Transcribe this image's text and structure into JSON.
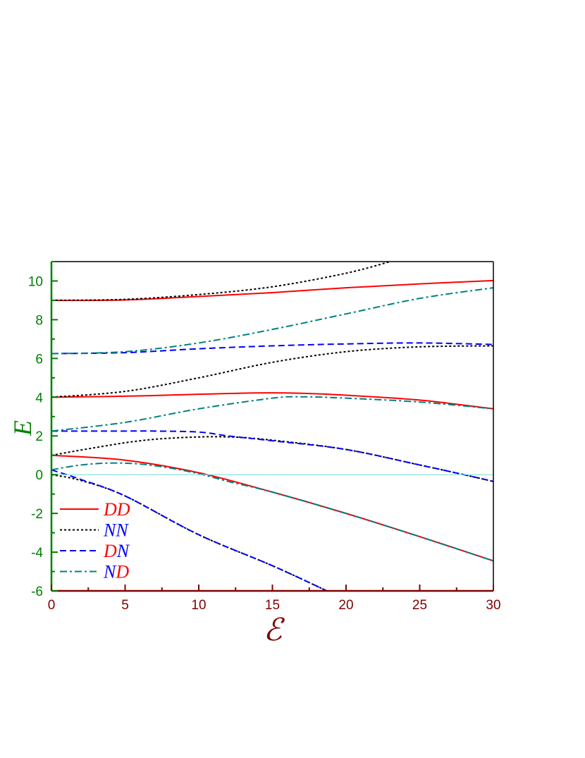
{
  "chart_data": {
    "type": "line",
    "title": "",
    "xlabel": "ℰ",
    "ylabel": "E",
    "xlim": [
      0,
      30
    ],
    "ylim": [
      -6,
      11
    ],
    "xticks": [
      0,
      5,
      10,
      15,
      20,
      25,
      30
    ],
    "yticks": [
      -6,
      -4,
      -2,
      0,
      2,
      4,
      6,
      8,
      10
    ],
    "grid": false,
    "legend_placement": "bottom-left",
    "colors": {
      "x_axis": "#800000",
      "y_axis": "#008000",
      "zero_line": "#7fe0e0"
    },
    "legend": [
      {
        "key": "DD",
        "parts": [
          {
            "t": "D",
            "c": "#ff0000"
          },
          {
            "t": "D",
            "c": "#ff0000"
          }
        ],
        "color": "#ff0000",
        "dash": "solid"
      },
      {
        "key": "NN",
        "parts": [
          {
            "t": "N",
            "c": "#0000ff"
          },
          {
            "t": "N",
            "c": "#0000ff"
          }
        ],
        "color": "#000000",
        "dash": "dot"
      },
      {
        "key": "DN",
        "parts": [
          {
            "t": "D",
            "c": "#ff0000"
          },
          {
            "t": "N",
            "c": "#0000ff"
          }
        ],
        "color": "#0000ff",
        "dash": "dash"
      },
      {
        "key": "ND",
        "parts": [
          {
            "t": "N",
            "c": "#0000ff"
          },
          {
            "t": "D",
            "c": "#ff0000"
          }
        ],
        "color": "#008080",
        "dash": "dashdot"
      }
    ],
    "series": [
      {
        "group": "DD",
        "x": [
          0,
          5,
          10,
          15,
          20,
          25,
          30
        ],
        "y": [
          1,
          0.75,
          0.1,
          -0.9,
          -2.0,
          -3.2,
          -4.45
        ]
      },
      {
        "group": "DD",
        "x": [
          0,
          5,
          10,
          14,
          17,
          20,
          25,
          30
        ],
        "y": [
          4,
          4.05,
          4.15,
          4.22,
          4.2,
          4.1,
          3.85,
          3.4
        ]
      },
      {
        "group": "DD",
        "x": [
          0,
          5,
          10,
          15,
          20,
          25,
          30
        ],
        "y": [
          9,
          9.02,
          9.2,
          9.4,
          9.65,
          9.85,
          10.02
        ]
      },
      {
        "group": "NN",
        "x": [
          0,
          2,
          5,
          10,
          15,
          18.7
        ],
        "y": [
          0,
          -0.3,
          -1.1,
          -3.1,
          -4.7,
          -6
        ]
      },
      {
        "group": "NN",
        "x": [
          0,
          3,
          6,
          9,
          12,
          15,
          20,
          25,
          28,
          30
        ],
        "y": [
          1,
          1.4,
          1.75,
          1.92,
          1.95,
          1.78,
          1.3,
          0.5,
          0,
          -0.35
        ]
      },
      {
        "group": "NN",
        "x": [
          0,
          5,
          10,
          15,
          20,
          25,
          30
        ],
        "y": [
          4,
          4.3,
          5.0,
          5.8,
          6.35,
          6.6,
          6.65
        ]
      },
      {
        "group": "NN",
        "x": [
          0,
          5,
          10,
          15,
          20,
          23
        ],
        "y": [
          9,
          9.05,
          9.3,
          9.7,
          10.4,
          11
        ]
      },
      {
        "group": "DN",
        "x": [
          0,
          2,
          5,
          10,
          15,
          18.7
        ],
        "y": [
          0.25,
          -0.25,
          -1.1,
          -3.1,
          -4.7,
          -6
        ]
      },
      {
        "group": "DN",
        "x": [
          0,
          4,
          7,
          10,
          12,
          15,
          20,
          25,
          28,
          30
        ],
        "y": [
          2.25,
          2.25,
          2.25,
          2.2,
          2.0,
          1.75,
          1.3,
          0.5,
          0,
          -0.35
        ]
      },
      {
        "group": "DN",
        "x": [
          0,
          5,
          10,
          15,
          20,
          25,
          30
        ],
        "y": [
          6.25,
          6.3,
          6.5,
          6.65,
          6.75,
          6.8,
          6.72
        ]
      },
      {
        "group": "ND",
        "x": [
          0,
          2,
          4,
          6,
          8,
          10,
          12,
          15,
          20,
          25,
          30
        ],
        "y": [
          0.25,
          0.5,
          0.6,
          0.55,
          0.35,
          0.05,
          -0.35,
          -0.9,
          -2.0,
          -3.2,
          -4.45
        ]
      },
      {
        "group": "ND",
        "x": [
          0,
          5,
          10,
          15,
          17,
          20,
          25,
          30
        ],
        "y": [
          2.25,
          2.7,
          3.4,
          3.95,
          4.02,
          3.95,
          3.75,
          3.4
        ]
      },
      {
        "group": "ND",
        "x": [
          0,
          5,
          10,
          15,
          20,
          25,
          30
        ],
        "y": [
          6.25,
          6.35,
          6.8,
          7.5,
          8.3,
          9.1,
          9.65
        ]
      }
    ]
  }
}
